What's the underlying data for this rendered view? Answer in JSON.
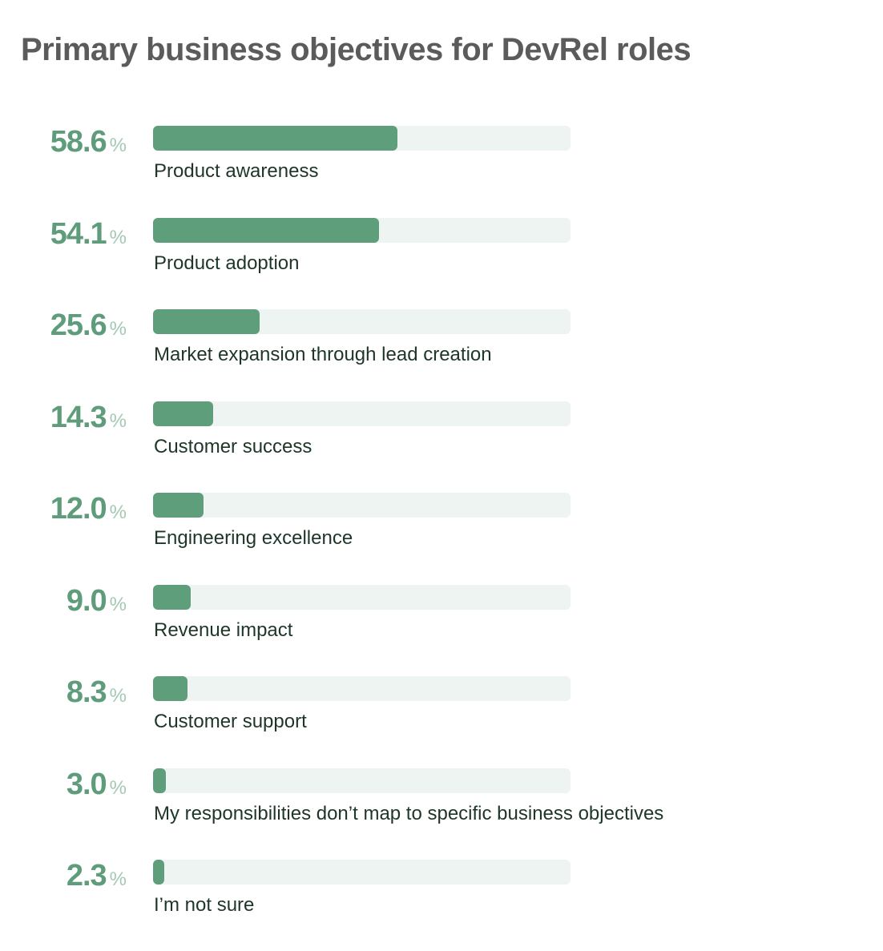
{
  "chart_data": {
    "type": "bar",
    "orientation": "horizontal",
    "title": "Primary business objectives for DevRel roles",
    "unit": "%",
    "xlim": [
      0,
      100
    ],
    "categories": [
      "Product awareness",
      "Product adoption",
      "Market expansion through lead creation",
      "Customer success",
      "Engineering excellence",
      "Revenue impact",
      "Customer support",
      "My responsibilities don’t map to specific business objectives",
      "I’m not sure"
    ],
    "values": [
      58.6,
      54.1,
      25.6,
      14.3,
      12.0,
      9.0,
      8.3,
      3.0,
      2.3
    ],
    "value_labels": [
      "58.6",
      "54.1",
      "25.6",
      "14.3",
      "12.0",
      "9.0",
      "8.3",
      "3.0",
      "2.3"
    ],
    "colors": {
      "bar": "#5f9e7b",
      "track": "#eef4f1",
      "value_text": "#5f9c7c",
      "percent_sign": "#a3c8b3",
      "label_text": "#1e3628",
      "title_text": "#5b5b5b"
    },
    "grid": false
  }
}
